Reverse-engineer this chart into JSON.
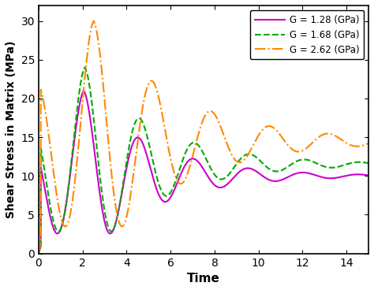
{
  "title": "",
  "xlabel": "Time",
  "ylabel": "Shear Stress in Matrix (MPa)",
  "xlim": [
    0,
    15
  ],
  "ylim": [
    0,
    32
  ],
  "xticks": [
    0,
    2,
    4,
    6,
    8,
    10,
    12,
    14
  ],
  "yticks": [
    0,
    5,
    10,
    15,
    20,
    25,
    30
  ],
  "legend": [
    {
      "label": "G = 1.28 (GPa)",
      "color": "#cc00cc",
      "linestyle": "solid",
      "linewidth": 1.5
    },
    {
      "label": "G = 1.68 (GPa)",
      "color": "#00aa00",
      "linestyle": "dashed",
      "linewidth": 1.5
    },
    {
      "label": "G = 2.62 (GPa)",
      "color": "#ff8800",
      "linestyle": "dashdot",
      "linewidth": 1.5
    }
  ],
  "background_color": "#ffffff"
}
